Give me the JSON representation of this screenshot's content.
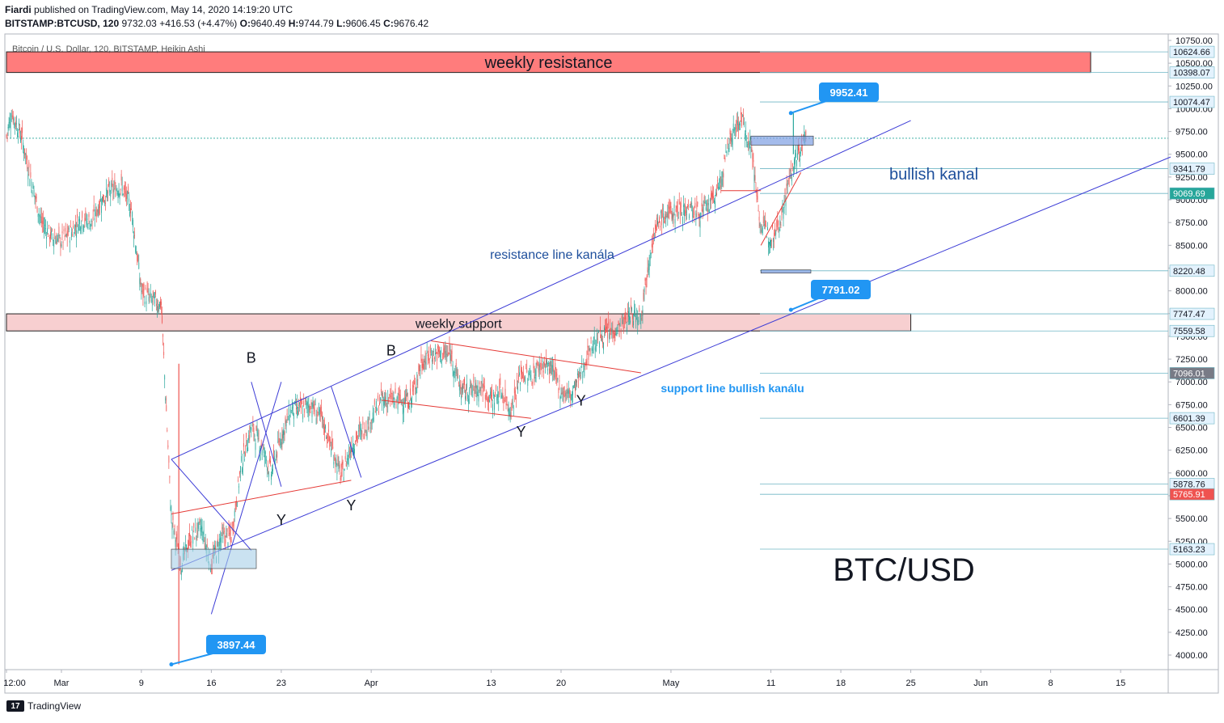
{
  "header": {
    "author": "Fiardi",
    "published_text": "published on TradingView.com, May 14, 2020 14:19:20 UTC",
    "symbol": "BITSTAMP:BTCUSD, 120",
    "last": "9732.03",
    "change": "+416.53 (+4.47%)",
    "o_label": "O:",
    "o": "9640.49",
    "h_label": "H:",
    "h": "9744.79",
    "l_label": "L:",
    "l": "9606.45",
    "c_label": "C:",
    "c": "9676.42"
  },
  "footer": {
    "brand": "TradingView",
    "logo_glyph": "17"
  },
  "chart_data": {
    "type": "candlestick",
    "title": "Bitcoin / U.S. Dollar, 120, BITSTAMP, Heikin Ashi",
    "big_label": "BTC/USD",
    "y_range": [
      3900,
      10800
    ],
    "y_ticks": [
      "10750.00",
      "10500.00",
      "10250.00",
      "10000.00",
      "9750.00",
      "9500.00",
      "9250.00",
      "9000.00",
      "8750.00",
      "8500.00",
      "8250.00",
      "8000.00",
      "7750.00",
      "7500.00",
      "7250.00",
      "7000.00",
      "6750.00",
      "6500.00",
      "6250.00",
      "6000.00",
      "5750.00",
      "5500.00",
      "5250.00",
      "5000.00",
      "4750.00",
      "4500.00",
      "4250.00",
      "4000.00"
    ],
    "x_range_days": [
      "2020-02-24 12:00",
      "2020-06-20"
    ],
    "x_ticks": [
      {
        "date": "2020-02-24 12:00",
        "label": "12:00"
      },
      {
        "date": "2020-03-01",
        "label": "Mar"
      },
      {
        "date": "2020-03-09",
        "label": "9"
      },
      {
        "date": "2020-03-16",
        "label": "16"
      },
      {
        "date": "2020-03-23",
        "label": "23"
      },
      {
        "date": "2020-04-01",
        "label": "Apr"
      },
      {
        "date": "2020-04-13",
        "label": "13"
      },
      {
        "date": "2020-04-20",
        "label": "20"
      },
      {
        "date": "2020-05-01",
        "label": "May"
      },
      {
        "date": "2020-05-11",
        "label": "11"
      },
      {
        "date": "2020-05-18",
        "label": "18"
      },
      {
        "date": "2020-05-25",
        "label": "25"
      },
      {
        "date": "2020-06-01",
        "label": "Jun"
      },
      {
        "date": "2020-06-08",
        "label": "8"
      },
      {
        "date": "2020-06-15",
        "label": "15"
      }
    ],
    "price_path": [
      {
        "x": "2020-02-24 12:00",
        "y": 9700
      },
      {
        "x": "2020-02-25",
        "y": 9950
      },
      {
        "x": "2020-02-26",
        "y": 9700
      },
      {
        "x": "2020-02-27",
        "y": 9200
      },
      {
        "x": "2020-02-28",
        "y": 8750
      },
      {
        "x": "2020-02-29",
        "y": 8600
      },
      {
        "x": "2020-03-01",
        "y": 8550
      },
      {
        "x": "2020-03-02",
        "y": 8650
      },
      {
        "x": "2020-03-03",
        "y": 8800
      },
      {
        "x": "2020-03-04",
        "y": 8750
      },
      {
        "x": "2020-03-05",
        "y": 9000
      },
      {
        "x": "2020-03-06",
        "y": 9100
      },
      {
        "x": "2020-03-07",
        "y": 9150
      },
      {
        "x": "2020-03-08",
        "y": 8900
      },
      {
        "x": "2020-03-09",
        "y": 8000
      },
      {
        "x": "2020-03-10",
        "y": 7900
      },
      {
        "x": "2020-03-11",
        "y": 7850
      },
      {
        "x": "2020-03-12",
        "y": 5500
      },
      {
        "x": "2020-03-13",
        "y": 5000
      },
      {
        "x": "2020-03-14",
        "y": 5300
      },
      {
        "x": "2020-03-15",
        "y": 5400
      },
      {
        "x": "2020-03-16",
        "y": 5000
      },
      {
        "x": "2020-03-17",
        "y": 5300
      },
      {
        "x": "2020-03-18",
        "y": 5300
      },
      {
        "x": "2020-03-19",
        "y": 6100
      },
      {
        "x": "2020-03-20",
        "y": 6500
      },
      {
        "x": "2020-03-21",
        "y": 6300
      },
      {
        "x": "2020-03-22",
        "y": 6000
      },
      {
        "x": "2020-03-23",
        "y": 6400
      },
      {
        "x": "2020-03-24",
        "y": 6700
      },
      {
        "x": "2020-03-25",
        "y": 6700
      },
      {
        "x": "2020-03-26",
        "y": 6750
      },
      {
        "x": "2020-03-27",
        "y": 6600
      },
      {
        "x": "2020-03-28",
        "y": 6300
      },
      {
        "x": "2020-03-29",
        "y": 5950
      },
      {
        "x": "2020-03-30",
        "y": 6300
      },
      {
        "x": "2020-03-31",
        "y": 6450
      },
      {
        "x": "2020-04-01",
        "y": 6600
      },
      {
        "x": "2020-04-02",
        "y": 6800
      },
      {
        "x": "2020-04-03",
        "y": 6800
      },
      {
        "x": "2020-04-04",
        "y": 6800
      },
      {
        "x": "2020-04-05",
        "y": 6800
      },
      {
        "x": "2020-04-06",
        "y": 7200
      },
      {
        "x": "2020-04-07",
        "y": 7300
      },
      {
        "x": "2020-04-08",
        "y": 7300
      },
      {
        "x": "2020-04-09",
        "y": 7300
      },
      {
        "x": "2020-04-10",
        "y": 6900
      },
      {
        "x": "2020-04-11",
        "y": 6900
      },
      {
        "x": "2020-04-12",
        "y": 6950
      },
      {
        "x": "2020-04-13",
        "y": 6800
      },
      {
        "x": "2020-04-14",
        "y": 6900
      },
      {
        "x": "2020-04-15",
        "y": 6700
      },
      {
        "x": "2020-04-16",
        "y": 7100
      },
      {
        "x": "2020-04-17",
        "y": 7050
      },
      {
        "x": "2020-04-18",
        "y": 7200
      },
      {
        "x": "2020-04-19",
        "y": 7150
      },
      {
        "x": "2020-04-20",
        "y": 6900
      },
      {
        "x": "2020-04-21",
        "y": 6850
      },
      {
        "x": "2020-04-22",
        "y": 7100
      },
      {
        "x": "2020-04-23",
        "y": 7400
      },
      {
        "x": "2020-04-24",
        "y": 7500
      },
      {
        "x": "2020-04-25",
        "y": 7550
      },
      {
        "x": "2020-04-26",
        "y": 7600
      },
      {
        "x": "2020-04-27",
        "y": 7750
      },
      {
        "x": "2020-04-28",
        "y": 7750
      },
      {
        "x": "2020-04-29",
        "y": 8500
      },
      {
        "x": "2020-04-30",
        "y": 8800
      },
      {
        "x": "2020-05-01",
        "y": 8850
      },
      {
        "x": "2020-05-02",
        "y": 8900
      },
      {
        "x": "2020-05-03",
        "y": 8900
      },
      {
        "x": "2020-05-04",
        "y": 8850
      },
      {
        "x": "2020-05-05",
        "y": 8950
      },
      {
        "x": "2020-05-06",
        "y": 9200
      },
      {
        "x": "2020-05-07",
        "y": 9700
      },
      {
        "x": "2020-05-08",
        "y": 9900
      },
      {
        "x": "2020-05-09",
        "y": 9600
      },
      {
        "x": "2020-05-10",
        "y": 8700
      },
      {
        "x": "2020-05-11",
        "y": 8600
      },
      {
        "x": "2020-05-12",
        "y": 8800
      },
      {
        "x": "2020-05-13",
        "y": 9300
      },
      {
        "x": "2020-05-14 12:00",
        "y": 9700
      }
    ],
    "horizontal_levels": [
      {
        "price": 10624.66,
        "label": "10624.66",
        "color": "#131722",
        "bg": "#e3f2fd"
      },
      {
        "price": 10398.07,
        "label": "10398.07",
        "color": "#131722",
        "bg": "#e3f2fd"
      },
      {
        "price": 10074.47,
        "label": "10074.47",
        "color": "#131722",
        "bg": "#e3f2fd"
      },
      {
        "price": 9341.79,
        "label": "9341.79",
        "color": "#131722",
        "bg": "#e3f2fd"
      },
      {
        "price": 9069.69,
        "label": "9069.69",
        "color": "#ffffff",
        "bg": "#26a69a"
      },
      {
        "price": 8220.48,
        "label": "8220.48",
        "color": "#131722",
        "bg": "#e3f2fd"
      },
      {
        "price": 7747.47,
        "label": "7747.47",
        "color": "#131722",
        "bg": "#e3f2fd"
      },
      {
        "price": 7559.58,
        "label": "7559.58",
        "color": "#131722",
        "bg": "#e3f2fd"
      },
      {
        "price": 7096.01,
        "label": "7096.01",
        "color": "#ffffff",
        "bg": "#787b86"
      },
      {
        "price": 6601.39,
        "label": "6601.39",
        "color": "#131722",
        "bg": "#e3f2fd"
      },
      {
        "price": 5878.76,
        "label": "5878.76",
        "color": "#131722",
        "bg": "#e3f2fd"
      },
      {
        "price": 5765.91,
        "label": "5765.91",
        "color": "#ffffff",
        "bg": "#ef5350"
      },
      {
        "price": 5163.23,
        "label": "5163.23",
        "color": "#131722",
        "bg": "#e3f2fd"
      }
    ],
    "zones": [
      {
        "name": "weekly-resistance",
        "label": "weekly resistance",
        "from": "2020-02-24 12:00",
        "to": "2020-06-12",
        "price_low": 10398.07,
        "price_high": 10624.66,
        "fill": "#ff7c7c"
      },
      {
        "name": "weekly-support",
        "label": "weekly support",
        "from": "2020-02-24 12:00",
        "to": "2020-05-25",
        "price_low": 7559.58,
        "price_high": 7747.47,
        "fill": "#f7cfd0"
      }
    ],
    "channel_lines": [
      {
        "name": "resistance-line",
        "color": "#3b3bd6",
        "from": {
          "x": "2020-03-12",
          "y": 6150
        },
        "to": {
          "x": "2020-05-25",
          "y": 9870
        }
      },
      {
        "name": "support-line",
        "color": "#3b3bd6",
        "from": {
          "x": "2020-03-12",
          "y": 4930
        },
        "to": {
          "x": "2020-06-20",
          "y": 9470
        }
      }
    ],
    "callouts": [
      {
        "name": "callout-high",
        "label": "9952.41",
        "x": "2020-05-13",
        "y": 9952.41
      },
      {
        "name": "callout-mid",
        "label": "7791.02",
        "x": "2020-05-13",
        "y": 7791.02
      },
      {
        "name": "callout-low",
        "label": "3897.44",
        "x": "2020-03-12",
        "y": 3897.44
      }
    ],
    "text_annotations": [
      {
        "name": "label-bullish-kanal",
        "text": "bullish kanal",
        "color": "#1e4f9c"
      },
      {
        "name": "label-resistance-line",
        "text": "resistance line kanála",
        "color": "#1e4f9c"
      },
      {
        "name": "label-support-line",
        "text": "support line bullish kanálu",
        "color": "#2196f3"
      }
    ],
    "wave_labels": [
      {
        "text": "B",
        "x": "2020-03-20",
        "y": 7210
      },
      {
        "text": "B",
        "x": "2020-04-03",
        "y": 7290
      },
      {
        "text": "Y",
        "x": "2020-03-23",
        "y": 5430
      },
      {
        "text": "Y",
        "x": "2020-03-30",
        "y": 5590
      },
      {
        "text": "Y",
        "x": "2020-04-16",
        "y": 6400
      },
      {
        "text": "Y",
        "x": "2020-04-22",
        "y": 6740
      }
    ],
    "colors": {
      "up": "#26a69a",
      "down": "#ef5350",
      "axis_text": "#131722"
    }
  }
}
